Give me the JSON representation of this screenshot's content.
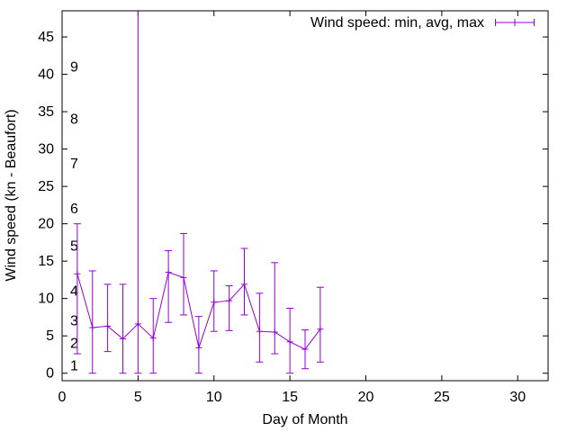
{
  "chart_data": {
    "type": "line",
    "style": "points-with-yerrorbars",
    "title": "",
    "xlabel": "Day of Month",
    "ylabel": "Wind speed (kn - Beaufort)",
    "legend": {
      "label": "Wind speed: min, avg, max",
      "position": "top-right",
      "boxed": false
    },
    "series_color": "#9400d3",
    "axis_color": "#000000",
    "grid": false,
    "xlim": [
      0,
      32
    ],
    "ylim": [
      -1,
      48.5
    ],
    "xticks": [
      0,
      5,
      10,
      15,
      20,
      25,
      30
    ],
    "yticks": [
      0,
      5,
      10,
      15,
      20,
      25,
      30,
      35,
      40,
      45
    ],
    "beaufort_labels": [
      {
        "text": "1",
        "kn": 1
      },
      {
        "text": "2",
        "kn": 4
      },
      {
        "text": "3",
        "kn": 7
      },
      {
        "text": "4",
        "kn": 11
      },
      {
        "text": "5",
        "kn": 17
      },
      {
        "text": "6",
        "kn": 22
      },
      {
        "text": "7",
        "kn": 28
      },
      {
        "text": "8",
        "kn": 34
      },
      {
        "text": "9",
        "kn": 41
      }
    ],
    "days": [
      1,
      2,
      3,
      4,
      5,
      6,
      7,
      8,
      9,
      10,
      11,
      12,
      13,
      14,
      15,
      16,
      17
    ],
    "series": [
      {
        "name": "min",
        "values": [
          2.6,
          0,
          2.9,
          0,
          0,
          0,
          6.8,
          7.8,
          0,
          5.6,
          5.7,
          7.8,
          1.5,
          2.6,
          0,
          0.6,
          1.5
        ]
      },
      {
        "name": "avg",
        "values": [
          13.3,
          6.1,
          6.3,
          4.6,
          6.6,
          4.7,
          13.5,
          12.8,
          3.4,
          9.5,
          9.7,
          11.9,
          5.6,
          5.5,
          4.2,
          3.2,
          5.9
        ]
      },
      {
        "name": "max",
        "values": [
          20,
          13.7,
          11.9,
          11.9,
          50,
          10,
          16.4,
          18.7,
          7.6,
          13.7,
          11.7,
          16.7,
          10.7,
          14.8,
          8.7,
          5.8,
          11.5
        ]
      }
    ],
    "clipping_note": "day 5 max bar extends beyond top of plot and is clipped at the border"
  }
}
